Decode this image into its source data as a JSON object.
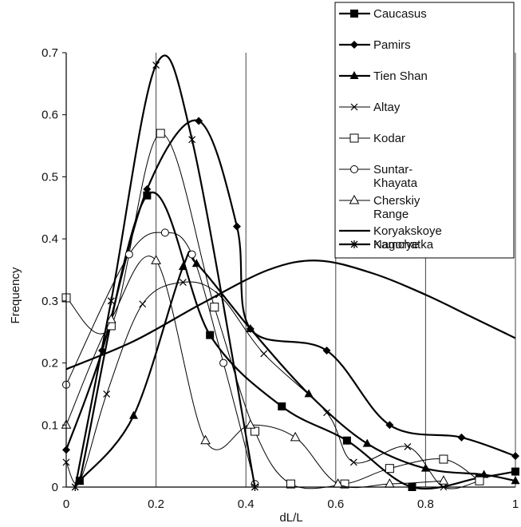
{
  "chart_data": {
    "type": "line",
    "xlabel": "dL/L",
    "ylabel": "Frequency",
    "xlim": [
      0,
      1
    ],
    "ylim": [
      0,
      0.7
    ],
    "x_ticks": [
      "0",
      "0.2",
      "0.4",
      "0.6",
      "0.8",
      "1"
    ],
    "y_ticks": [
      "0",
      "0.1",
      "0.2",
      "0.3",
      "0.4",
      "0.5",
      "0.6",
      "0.7"
    ],
    "grid": "vertical",
    "legend_position": "top-right",
    "series": [
      {
        "name": "Caucasus",
        "marker": "square-filled",
        "stroke": "#000000",
        "width": 2.2,
        "points": [
          [
            0.03,
            0.01
          ],
          [
            0.18,
            0.47
          ],
          [
            0.32,
            0.245
          ],
          [
            0.48,
            0.13
          ],
          [
            0.625,
            0.075
          ],
          [
            0.77,
            0
          ],
          [
            0.92,
            0.015
          ],
          [
            1.0,
            0.025
          ]
        ]
      },
      {
        "name": "Pamirs",
        "marker": "diamond-filled",
        "stroke": "#000000",
        "width": 2.2,
        "points": [
          [
            0.0,
            0.06
          ],
          [
            0.08,
            0.22
          ],
          [
            0.18,
            0.48
          ],
          [
            0.295,
            0.59
          ],
          [
            0.38,
            0.42
          ],
          [
            0.41,
            0.255
          ],
          [
            0.58,
            0.22
          ],
          [
            0.72,
            0.1
          ],
          [
            0.88,
            0.08
          ],
          [
            1.0,
            0.05
          ]
        ]
      },
      {
        "name": "Tien Shan",
        "marker": "triangle-filled",
        "stroke": "#000000",
        "width": 2.2,
        "points": [
          [
            0.03,
            0.01
          ],
          [
            0.15,
            0.115
          ],
          [
            0.26,
            0.355
          ],
          [
            0.29,
            0.36
          ],
          [
            0.41,
            0.255
          ],
          [
            0.54,
            0.15
          ],
          [
            0.67,
            0.07
          ],
          [
            0.8,
            0.03
          ],
          [
            0.93,
            0.02
          ],
          [
            1.0,
            0.01
          ]
        ]
      },
      {
        "name": "Altay",
        "marker": "x",
        "stroke": "#000000",
        "width": 1.0,
        "points": [
          [
            0.0,
            0.04
          ],
          [
            0.03,
            0.01
          ],
          [
            0.09,
            0.15
          ],
          [
            0.17,
            0.295
          ],
          [
            0.26,
            0.33
          ],
          [
            0.34,
            0.31
          ],
          [
            0.44,
            0.215
          ],
          [
            0.58,
            0.12
          ],
          [
            0.64,
            0.04
          ],
          [
            0.76,
            0.065
          ],
          [
            0.84,
            0
          ],
          [
            0.92,
            0.01
          ]
        ]
      },
      {
        "name": "Kodar",
        "marker": "square-open",
        "stroke": "#000000",
        "width": 1.0,
        "points": [
          [
            0.0,
            0.305
          ],
          [
            0.1,
            0.26
          ],
          [
            0.21,
            0.57
          ],
          [
            0.33,
            0.29
          ],
          [
            0.42,
            0.09
          ],
          [
            0.5,
            0.005
          ],
          [
            0.62,
            0.005
          ],
          [
            0.72,
            0.03
          ],
          [
            0.84,
            0.045
          ],
          [
            0.92,
            0.01
          ]
        ]
      },
      {
        "name": "Suntar-Khayata",
        "marker": "circle-open",
        "stroke": "#000000",
        "width": 1.0,
        "points": [
          [
            0.0,
            0.165
          ],
          [
            0.14,
            0.375
          ],
          [
            0.22,
            0.41
          ],
          [
            0.28,
            0.375
          ],
          [
            0.35,
            0.2
          ],
          [
            0.42,
            0.005
          ]
        ]
      },
      {
        "name": "Cherskiy Range",
        "marker": "triangle-open",
        "stroke": "#000000",
        "width": 1.0,
        "points": [
          [
            0.0,
            0.1
          ],
          [
            0.1,
            0.27
          ],
          [
            0.2,
            0.365
          ],
          [
            0.31,
            0.075
          ],
          [
            0.41,
            0.1
          ],
          [
            0.51,
            0.08
          ],
          [
            0.605,
            0.005
          ],
          [
            0.72,
            0.005
          ],
          [
            0.84,
            0.01
          ]
        ]
      },
      {
        "name": "Koryakskoye Nagorye",
        "marker": "none",
        "stroke": "#000000",
        "width": 2.2,
        "points": [
          [
            0.0,
            0.19
          ],
          [
            0.15,
            0.235
          ],
          [
            0.3,
            0.295
          ],
          [
            0.45,
            0.35
          ],
          [
            0.56,
            0.365
          ],
          [
            0.68,
            0.345
          ],
          [
            0.8,
            0.31
          ],
          [
            0.9,
            0.275
          ],
          [
            1.0,
            0.24
          ]
        ]
      },
      {
        "name": "Kamchatka",
        "marker": "asterisk",
        "stroke": "#000000",
        "width": 2.2,
        "points": [
          [
            0.02,
            0.0
          ],
          [
            0.1,
            0.3
          ],
          [
            0.2,
            0.68
          ],
          [
            0.28,
            0.56
          ],
          [
            0.42,
            0.0
          ]
        ]
      }
    ],
    "legend": [
      {
        "line1": "Caucasus",
        "line2": ""
      },
      {
        "line1": "Pamirs",
        "line2": ""
      },
      {
        "line1": "Tien Shan",
        "line2": ""
      },
      {
        "line1": "Altay",
        "line2": ""
      },
      {
        "line1": "Kodar",
        "line2": ""
      },
      {
        "line1": "Suntar-",
        "line2": "Khayata"
      },
      {
        "line1": "Cherskiy",
        "line2": "Range"
      },
      {
        "line1": "Koryakskoye",
        "line2": "Nagorye"
      },
      {
        "line1": "Kamchatka",
        "line2": ""
      }
    ]
  }
}
